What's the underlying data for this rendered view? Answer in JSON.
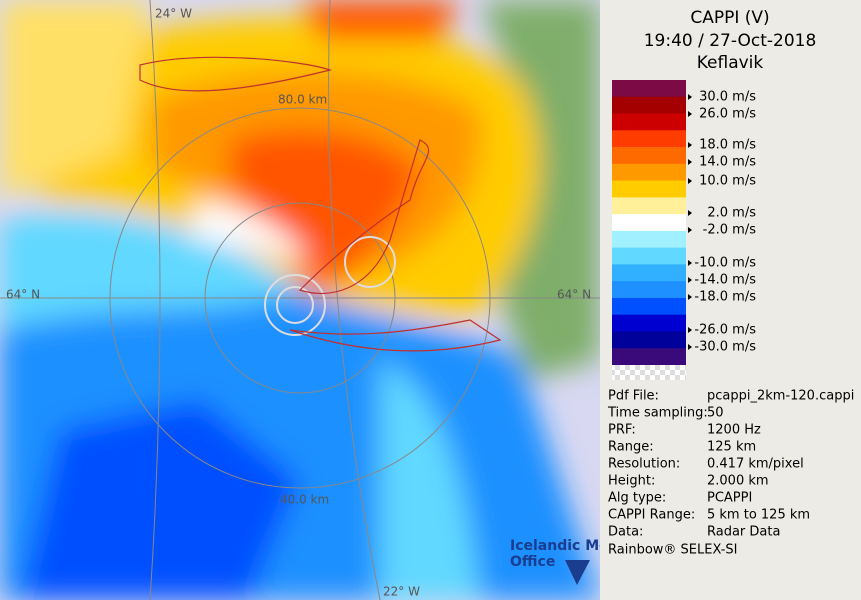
{
  "header": {
    "title": "CAPPI (V)",
    "time": "19:40 / 27-Oct-2018",
    "site": "Keflavik"
  },
  "legend": {
    "labels": [
      "30.0 m/s",
      "26.0 m/s",
      "18.0 m/s",
      "14.0 m/s",
      "10.0 m/s",
      "2.0 m/s",
      "-2.0 m/s",
      "-10.0 m/s",
      "-14.0 m/s",
      "-18.0 m/s",
      "-26.0 m/s",
      "-30.0 m/s"
    ]
  },
  "info": {
    "rows": [
      [
        "Pdf File:",
        "pcappi_2km-120.cappi"
      ],
      [
        "Time sampling:",
        "50"
      ],
      [
        "PRF:",
        "1200 Hz"
      ],
      [
        "Range:",
        "125 km"
      ],
      [
        "Resolution:",
        "0.417 km/pixel"
      ],
      [
        "Height:",
        "2.000 km"
      ],
      [
        "Alg type:",
        "PCAPPI"
      ],
      [
        "CAPPI Range:",
        "5 km to 125 km"
      ],
      [
        "Data:",
        "Radar Data"
      ]
    ],
    "footer": "Rainbow® SELEX-SI"
  },
  "map": {
    "labels": [
      "24° W",
      "80.0 km",
      "64° N",
      "64° N",
      "40.0 km",
      "22° W"
    ]
  },
  "logo": {
    "line1": "Icelandic Met",
    "line2": "Office"
  }
}
